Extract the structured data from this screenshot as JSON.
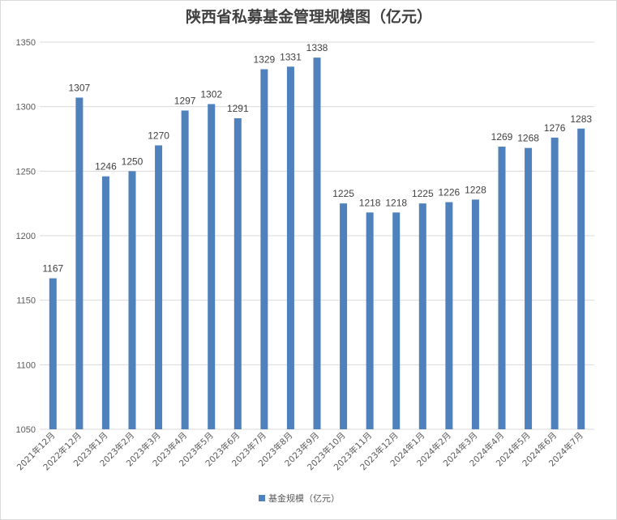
{
  "chart_data": {
    "type": "bar",
    "title": "陕西省私募基金管理规模图（亿元）",
    "categories": [
      "2021年12月",
      "2022年12月",
      "2023年1月",
      "2023年2月",
      "2023年3月",
      "2023年4月",
      "2023年5月",
      "2023年6月",
      "2023年7月",
      "2023年8月",
      "2023年9月",
      "2023年10月",
      "2023年11月",
      "2023年12月",
      "2024年1月",
      "2024年2月",
      "2024年3月",
      "2024年4月",
      "2024年5月",
      "2024年6月",
      "2024年7月"
    ],
    "series": [
      {
        "name": "基金规模（亿元）",
        "values": [
          1167,
          1307,
          1246,
          1250,
          1270,
          1297,
          1302,
          1291,
          1329,
          1331,
          1338,
          1225,
          1218,
          1218,
          1225,
          1226,
          1228,
          1269,
          1268,
          1276,
          1283
        ]
      }
    ],
    "ylim": [
      1050,
      1350
    ],
    "yticks": [
      1050,
      1100,
      1150,
      1200,
      1250,
      1300,
      1350
    ],
    "xlabel": "",
    "ylabel": "",
    "grid": true,
    "legend": "bottom",
    "bar_color": "#4f81bd",
    "grid_color": "#d9d9d9"
  }
}
